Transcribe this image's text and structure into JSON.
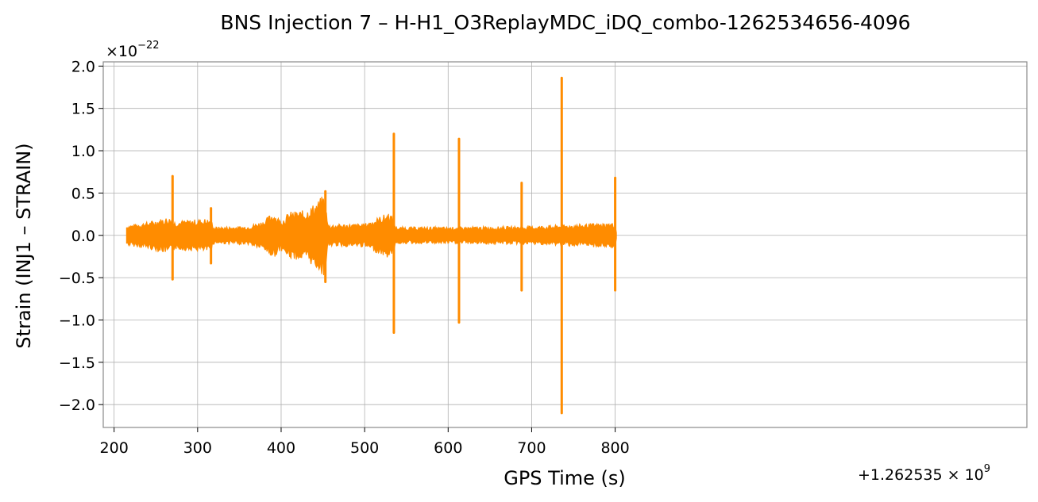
{
  "chart_data": {
    "type": "line",
    "title": "BNS Injection 7 – H-H1_O3ReplayMDC_iDQ_combo-1262534656-4096",
    "xlabel": "GPS Time (s)",
    "ylabel": "Strain (INJ1 – STRAIN)",
    "x_offset_text": "+1.262535 × 10",
    "x_offset_exp": "9",
    "y_scale_text": "×10",
    "y_scale_exp": "−22",
    "xlim": [
      187,
      1293
    ],
    "ylim": [
      -2.27,
      2.05
    ],
    "x_ticks": [
      200,
      300,
      400,
      500,
      600,
      700,
      800
    ],
    "x_tick_labels": [
      "200",
      "300",
      "400",
      "500",
      "600",
      "700",
      "800"
    ],
    "y_ticks": [
      2.0,
      1.5,
      1.0,
      0.5,
      0.0,
      -0.5,
      -1.0,
      -1.5,
      -2.0
    ],
    "y_tick_labels": [
      "2.0",
      "1.5",
      "1.0",
      "0.5",
      "0.0",
      "−0.5",
      "−1.0",
      "−1.5",
      "−2.0"
    ],
    "grid": true,
    "line_color": "#ff8c00",
    "time_range": [
      215,
      802
    ],
    "noise_envelope": [
      [
        215,
        0.12
      ],
      [
        240,
        0.16
      ],
      [
        265,
        0.22
      ],
      [
        272,
        0.17
      ],
      [
        310,
        0.2
      ],
      [
        316,
        0.18
      ],
      [
        320,
        0.1
      ],
      [
        360,
        0.11
      ],
      [
        380,
        0.18
      ],
      [
        390,
        0.28
      ],
      [
        400,
        0.18
      ],
      [
        410,
        0.28
      ],
      [
        430,
        0.3
      ],
      [
        445,
        0.42
      ],
      [
        452,
        0.5
      ],
      [
        456,
        0.13
      ],
      [
        500,
        0.14
      ],
      [
        530,
        0.28
      ],
      [
        535,
        0.18
      ],
      [
        538,
        0.1
      ],
      [
        600,
        0.1
      ],
      [
        700,
        0.11
      ],
      [
        800,
        0.15
      ],
      [
        802,
        0.0
      ]
    ],
    "spikes": [
      {
        "t": 270,
        "max": 0.7,
        "min": -0.52
      },
      {
        "t": 316,
        "max": 0.32,
        "min": -0.33
      },
      {
        "t": 453,
        "max": 0.52,
        "min": -0.55
      },
      {
        "t": 535,
        "max": 1.2,
        "min": -1.15
      },
      {
        "t": 613,
        "max": 1.14,
        "min": -1.03
      },
      {
        "t": 688,
        "max": 0.62,
        "min": -0.65
      },
      {
        "t": 736,
        "max": 1.86,
        "min": -2.1
      },
      {
        "t": 800,
        "max": 0.68,
        "min": -0.65
      }
    ]
  }
}
